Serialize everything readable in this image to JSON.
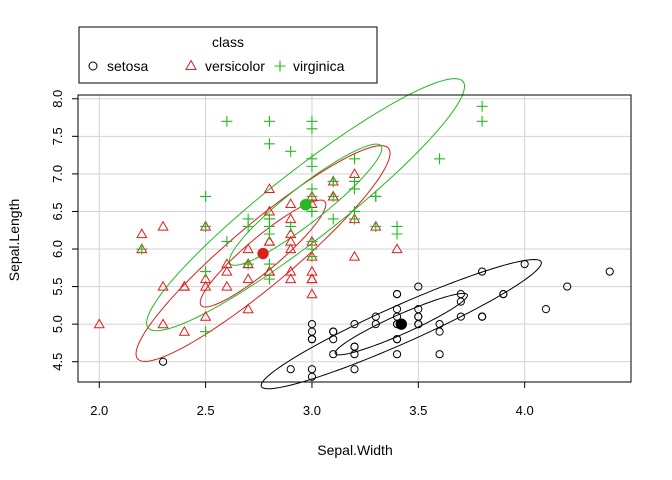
{
  "chart_data": {
    "type": "scatter",
    "xlabel": "Sepal.Width",
    "ylabel": "Sepal.Length",
    "xlim": [
      1.9,
      4.5
    ],
    "ylim": [
      4.23,
      8.05
    ],
    "x_ticks": [
      "2.0",
      "2.5",
      "3.0",
      "3.5",
      "4.0"
    ],
    "y_ticks": [
      "4.5",
      "5.0",
      "5.5",
      "6.0",
      "6.5",
      "7.0",
      "7.5",
      "8.0"
    ],
    "grid": true,
    "legend": {
      "title": "class",
      "placement": "top-left",
      "items": [
        "setosa",
        "versicolor",
        "virginica"
      ]
    },
    "series": [
      {
        "name": "setosa",
        "color": "#000000",
        "marker": "circle",
        "centroid": [
          3.42,
          5.0
        ],
        "ellipses": [
          {
            "cx": 3.42,
            "cy": 5.0,
            "a": 0.34,
            "b": 0.13,
            "angle_deg": 24
          },
          {
            "cx": 3.42,
            "cy": 5.0,
            "a": 0.72,
            "b": 0.25,
            "angle_deg": 24
          }
        ],
        "points": [
          [
            3.5,
            5.1
          ],
          [
            3.0,
            4.9
          ],
          [
            3.2,
            4.7
          ],
          [
            3.1,
            4.6
          ],
          [
            3.6,
            5.0
          ],
          [
            3.9,
            5.4
          ],
          [
            3.4,
            4.6
          ],
          [
            3.4,
            5.0
          ],
          [
            2.9,
            4.4
          ],
          [
            3.1,
            4.9
          ],
          [
            3.7,
            5.4
          ],
          [
            3.4,
            4.8
          ],
          [
            3.0,
            4.8
          ],
          [
            3.0,
            4.3
          ],
          [
            4.0,
            5.8
          ],
          [
            4.4,
            5.7
          ],
          [
            3.9,
            5.4
          ],
          [
            3.5,
            5.1
          ],
          [
            3.8,
            5.7
          ],
          [
            3.8,
            5.1
          ],
          [
            3.4,
            5.4
          ],
          [
            3.7,
            5.1
          ],
          [
            3.6,
            4.6
          ],
          [
            3.3,
            5.1
          ],
          [
            3.4,
            4.8
          ],
          [
            3.0,
            5.0
          ],
          [
            3.4,
            5.0
          ],
          [
            3.5,
            5.2
          ],
          [
            3.4,
            5.2
          ],
          [
            3.2,
            4.7
          ],
          [
            3.1,
            4.8
          ],
          [
            3.4,
            5.4
          ],
          [
            4.1,
            5.2
          ],
          [
            4.2,
            5.5
          ],
          [
            3.1,
            4.9
          ],
          [
            3.2,
            5.0
          ],
          [
            3.5,
            5.5
          ],
          [
            3.6,
            4.9
          ],
          [
            3.0,
            4.4
          ],
          [
            3.4,
            5.1
          ],
          [
            3.5,
            5.0
          ],
          [
            2.3,
            4.5
          ],
          [
            3.2,
            4.4
          ],
          [
            3.5,
            5.0
          ],
          [
            3.8,
            5.1
          ],
          [
            3.0,
            4.8
          ],
          [
            3.8,
            5.1
          ],
          [
            3.2,
            4.6
          ],
          [
            3.7,
            5.3
          ],
          [
            3.3,
            5.0
          ]
        ]
      },
      {
        "name": "versicolor",
        "color": "#DF1E1E",
        "marker": "triangle",
        "centroid": [
          2.77,
          5.94
        ],
        "ellipses": [
          {
            "cx": 2.77,
            "cy": 5.94,
            "a": 0.38,
            "b": 0.22,
            "angle_deg": 40
          },
          {
            "cx": 2.77,
            "cy": 5.94,
            "a": 0.77,
            "b": 0.41,
            "angle_deg": 40
          }
        ],
        "points": [
          [
            3.2,
            7.0
          ],
          [
            3.2,
            6.4
          ],
          [
            3.1,
            6.9
          ],
          [
            2.3,
            5.5
          ],
          [
            2.8,
            6.5
          ],
          [
            2.8,
            5.7
          ],
          [
            3.3,
            6.3
          ],
          [
            2.4,
            4.9
          ],
          [
            2.9,
            6.6
          ],
          [
            2.7,
            5.2
          ],
          [
            2.0,
            5.0
          ],
          [
            3.0,
            5.9
          ],
          [
            2.2,
            6.0
          ],
          [
            2.9,
            6.1
          ],
          [
            2.9,
            5.6
          ],
          [
            3.1,
            6.7
          ],
          [
            3.0,
            5.6
          ],
          [
            2.7,
            5.8
          ],
          [
            2.2,
            6.2
          ],
          [
            2.5,
            5.6
          ],
          [
            3.2,
            5.9
          ],
          [
            2.8,
            6.1
          ],
          [
            2.5,
            6.3
          ],
          [
            2.8,
            6.1
          ],
          [
            2.9,
            6.4
          ],
          [
            3.0,
            6.6
          ],
          [
            2.8,
            6.8
          ],
          [
            3.0,
            6.7
          ],
          [
            2.9,
            6.0
          ],
          [
            2.6,
            5.7
          ],
          [
            2.4,
            5.5
          ],
          [
            2.4,
            5.5
          ],
          [
            2.7,
            5.8
          ],
          [
            2.7,
            6.0
          ],
          [
            3.0,
            5.4
          ],
          [
            3.4,
            6.0
          ],
          [
            3.1,
            6.7
          ],
          [
            2.3,
            6.3
          ],
          [
            3.0,
            5.6
          ],
          [
            2.5,
            5.5
          ],
          [
            2.6,
            5.5
          ],
          [
            3.0,
            6.1
          ],
          [
            2.6,
            5.8
          ],
          [
            2.3,
            5.0
          ],
          [
            2.7,
            5.6
          ],
          [
            3.0,
            5.7
          ],
          [
            2.9,
            5.7
          ],
          [
            2.9,
            6.2
          ],
          [
            2.5,
            5.1
          ],
          [
            2.8,
            5.7
          ]
        ]
      },
      {
        "name": "virginica",
        "color": "#22BB22",
        "marker": "plus",
        "centroid": [
          2.97,
          6.59
        ],
        "ellipses": [
          {
            "cx": 2.97,
            "cy": 6.59,
            "a": 0.45,
            "b": 0.24,
            "angle_deg": 38
          },
          {
            "cx": 2.97,
            "cy": 6.59,
            "a": 0.94,
            "b": 0.46,
            "angle_deg": 38
          }
        ],
        "points": [
          [
            3.3,
            6.3
          ],
          [
            2.7,
            5.8
          ],
          [
            3.0,
            7.1
          ],
          [
            2.9,
            6.3
          ],
          [
            3.0,
            6.5
          ],
          [
            3.0,
            7.6
          ],
          [
            2.5,
            4.9
          ],
          [
            2.9,
            7.3
          ],
          [
            2.5,
            6.7
          ],
          [
            3.6,
            7.2
          ],
          [
            3.2,
            6.5
          ],
          [
            2.7,
            6.4
          ],
          [
            3.0,
            6.8
          ],
          [
            2.5,
            5.7
          ],
          [
            2.8,
            5.8
          ],
          [
            3.2,
            6.4
          ],
          [
            3.0,
            6.5
          ],
          [
            3.8,
            7.7
          ],
          [
            2.6,
            7.7
          ],
          [
            2.2,
            6.0
          ],
          [
            3.2,
            6.9
          ],
          [
            2.8,
            5.6
          ],
          [
            2.8,
            7.7
          ],
          [
            2.7,
            6.3
          ],
          [
            3.3,
            6.7
          ],
          [
            3.2,
            7.2
          ],
          [
            2.8,
            6.2
          ],
          [
            3.0,
            6.1
          ],
          [
            2.8,
            6.4
          ],
          [
            3.0,
            7.2
          ],
          [
            2.8,
            7.4
          ],
          [
            3.8,
            7.9
          ],
          [
            2.8,
            6.4
          ],
          [
            2.8,
            6.3
          ],
          [
            2.6,
            6.1
          ],
          [
            3.0,
            7.7
          ],
          [
            3.4,
            6.3
          ],
          [
            3.1,
            6.4
          ],
          [
            3.0,
            6.0
          ],
          [
            3.1,
            6.9
          ],
          [
            3.1,
            6.7
          ],
          [
            3.1,
            6.9
          ],
          [
            2.7,
            5.8
          ],
          [
            3.2,
            6.8
          ],
          [
            3.3,
            6.7
          ],
          [
            3.0,
            6.7
          ],
          [
            2.5,
            6.3
          ],
          [
            3.0,
            6.5
          ],
          [
            3.4,
            6.2
          ],
          [
            3.0,
            5.9
          ]
        ]
      }
    ]
  }
}
